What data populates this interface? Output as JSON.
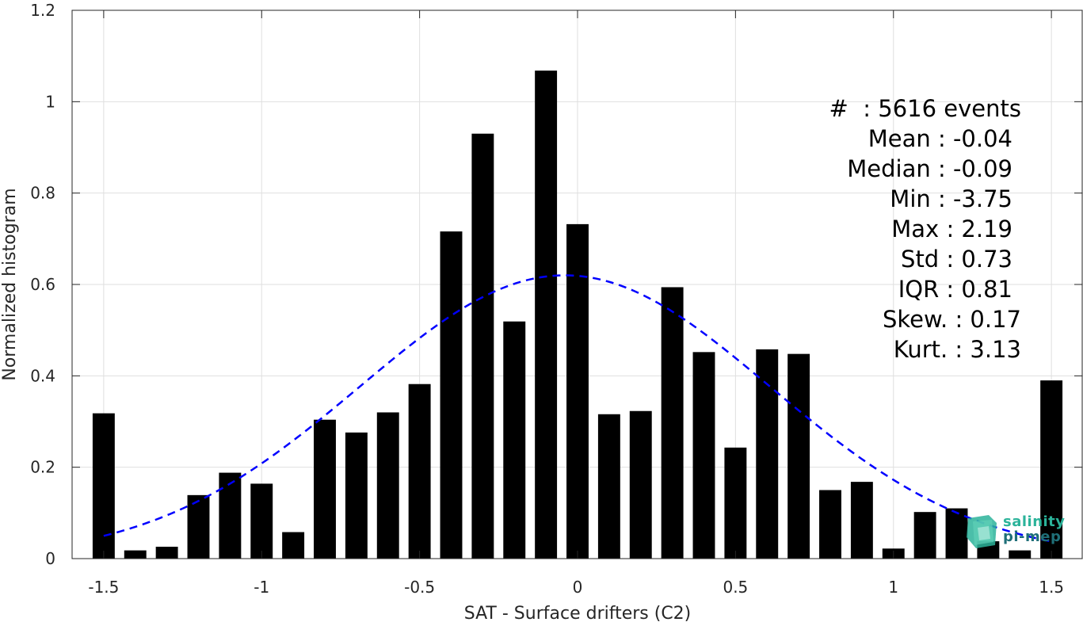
{
  "chart_data": {
    "type": "bar",
    "xlabel": "SAT - Surface drifters (C2)",
    "ylabel": "Normalized histogram",
    "xlim": [
      -1.6,
      1.6
    ],
    "ylim": [
      0,
      1.2
    ],
    "xticks": [
      -1.5,
      -1,
      -0.5,
      0,
      0.5,
      1,
      1.5
    ],
    "xtick_labels": [
      "-1.5",
      "-1",
      "-0.5",
      "0",
      "0.5",
      "1",
      "1.5"
    ],
    "yticks": [
      0,
      0.2,
      0.4,
      0.6,
      0.8,
      1,
      1.2
    ],
    "ytick_labels": [
      "0",
      "0.2",
      "0.4",
      "0.6",
      "0.8",
      "1",
      "1.2"
    ],
    "grid": true,
    "bar_width": 0.07,
    "bar_color": "#000000",
    "x": [
      -1.5,
      -1.4,
      -1.3,
      -1.2,
      -1.1,
      -1.0,
      -0.9,
      -0.8,
      -0.7,
      -0.6,
      -0.5,
      -0.4,
      -0.3,
      -0.2,
      -0.1,
      0.0,
      0.1,
      0.2,
      0.3,
      0.4,
      0.5,
      0.6,
      0.7,
      0.8,
      0.9,
      1.0,
      1.1,
      1.2,
      1.3,
      1.4,
      1.5
    ],
    "values": [
      0.318,
      0.018,
      0.026,
      0.139,
      0.188,
      0.164,
      0.058,
      0.304,
      0.276,
      0.32,
      0.382,
      0.716,
      0.93,
      0.519,
      1.068,
      0.732,
      0.316,
      0.323,
      0.594,
      0.452,
      0.243,
      0.458,
      0.448,
      0.15,
      0.168,
      0.022,
      0.102,
      0.11,
      0.038,
      0.018,
      0.39
    ],
    "fit": {
      "type": "normal",
      "mean": -0.04,
      "std": 0.65,
      "x_range": [
        -1.5,
        1.5
      ],
      "color": "#0000ff",
      "style": "dashed"
    },
    "annotations": [
      "#  : 5616 events",
      "Mean : -0.04",
      "Median : -0.09",
      "Min : -3.75",
      "Max : 2.19",
      "Std : 0.73",
      "IQR : 0.81",
      "Skew. : 0.17",
      "Kurt. : 3.13"
    ]
  },
  "logo": {
    "line1": "salinity",
    "line2": "pi-mep"
  }
}
